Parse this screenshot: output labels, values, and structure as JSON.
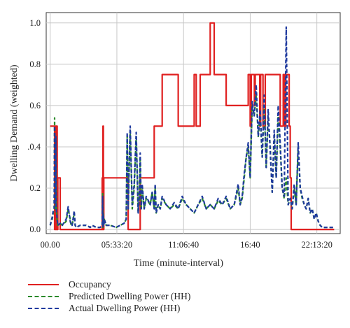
{
  "chart_data": {
    "type": "line",
    "xlabel": "Time (minute-interval)",
    "ylabel": "Dwelling Demand (weighted)",
    "x_ticks": [
      "00.00",
      "05:33:20",
      "11:06:40",
      "16:40",
      "22:13:20"
    ],
    "x_tick_minutes": [
      0,
      333.33,
      666.67,
      1000,
      1333.33
    ],
    "xlim": [
      -20,
      1450
    ],
    "y_ticks": [
      "0.0",
      "0.2",
      ".0.4",
      "0.6",
      "0.8",
      "1.0"
    ],
    "y_tick_values": [
      0,
      0.2,
      0.4,
      0.6,
      0.8,
      1.0
    ],
    "ylim": [
      -0.02,
      1.05
    ],
    "grid": true,
    "legend_position": "bottom",
    "series": [
      {
        "name": "Occupancy",
        "style": "solid",
        "color": "#e02020",
        "x": [
          0,
          22,
          22,
          26,
          26,
          30,
          30,
          32,
          32,
          35,
          35,
          38,
          38,
          50,
          50,
          260,
          260,
          262,
          262,
          264,
          264,
          266,
          266,
          268,
          268,
          390,
          390,
          450,
          450,
          520,
          520,
          560,
          560,
          640,
          640,
          720,
          720,
          730,
          730,
          750,
          750,
          800,
          800,
          820,
          820,
          880,
          880,
          990,
          990,
          1000,
          1000,
          1005,
          1005,
          1015,
          1015,
          1021,
          1021,
          1025,
          1025,
          1030,
          1030,
          1040,
          1040,
          1044,
          1044,
          1048,
          1048,
          1052,
          1052,
          1058,
          1058,
          1064,
          1064,
          1075,
          1075,
          1085,
          1085,
          1130,
          1130,
          1150,
          1150,
          1165,
          1165,
          1172,
          1172,
          1178,
          1178,
          1190,
          1190,
          1195,
          1195,
          1200,
          1200,
          1205,
          1205,
          1260,
          1260,
          1275,
          1275,
          1290,
          1290,
          1340,
          1340,
          1350,
          1350,
          1370,
          1370,
          1380,
          1380,
          1420
        ],
        "y": [
          0.5,
          0.5,
          0.0,
          0.0,
          0.5,
          0.5,
          0.0,
          0.0,
          0.5,
          0.5,
          0.0,
          0.0,
          0.25,
          0.25,
          0.0,
          0.0,
          0.25,
          0.25,
          0.0,
          0.0,
          0.5,
          0.5,
          0.0,
          0.0,
          0.25,
          0.25,
          0.0,
          0.0,
          0.25,
          0.25,
          0.5,
          0.5,
          0.75,
          0.75,
          0.5,
          0.5,
          0.75,
          0.75,
          0.5,
          0.5,
          0.75,
          0.75,
          1.0,
          1.0,
          0.75,
          0.75,
          0.6,
          0.6,
          0.75,
          0.75,
          0.5,
          0.5,
          0.75,
          0.75,
          0.75,
          0.75,
          0.6,
          0.6,
          0.75,
          0.75,
          0.75,
          0.75,
          0.75,
          0.75,
          0.75,
          0.75,
          0.5,
          0.5,
          0.75,
          0.75,
          0.75,
          0.75,
          0.5,
          0.5,
          0.75,
          0.75,
          0.75,
          0.75,
          0.75,
          0.75,
          0.5,
          0.5,
          0.75,
          0.75,
          0.5,
          0.5,
          0.75,
          0.75,
          0.75,
          0.75,
          0.5,
          0.5,
          0.25,
          0.25,
          0.0,
          0.0,
          0.0,
          0.0,
          0.0,
          0.0,
          0.0,
          0.0,
          0.0,
          0.0,
          0.0,
          0.0,
          0.0,
          0.0,
          0.0,
          0.0
        ]
      },
      {
        "name": "Predicted Dwelling Power (HH)",
        "style": "dashed",
        "color": "#2a8a2a",
        "x": [
          0,
          10,
          15,
          20,
          22,
          24,
          26,
          28,
          30,
          35,
          38,
          50,
          60,
          80,
          90,
          100,
          105,
          110,
          120,
          125,
          130,
          150,
          180,
          200,
          210,
          230,
          250,
          260,
          262,
          264,
          266,
          268,
          270,
          280,
          300,
          330,
          350,
          370,
          380,
          385,
          390,
          395,
          400,
          410,
          420,
          430,
          440,
          445,
          450,
          455,
          460,
          470,
          480,
          500,
          510,
          520,
          525,
          530,
          540,
          550,
          560,
          580,
          600,
          620,
          640,
          660,
          680,
          700,
          720,
          740,
          760,
          780,
          800,
          820,
          840,
          860,
          880,
          900,
          920,
          940,
          950,
          960,
          970,
          980,
          990,
          1000,
          1010,
          1020,
          1030,
          1040,
          1050,
          1060,
          1070,
          1080,
          1090,
          1100,
          1110,
          1120,
          1130,
          1140,
          1150,
          1160,
          1170,
          1180,
          1190,
          1200,
          1210,
          1220,
          1230,
          1240,
          1250,
          1260,
          1270,
          1280,
          1290,
          1300,
          1310,
          1320,
          1330,
          1340,
          1350,
          1360,
          1380,
          1420
        ],
        "y": [
          0.02,
          0.05,
          0.08,
          0.1,
          0.54,
          0.3,
          0.1,
          0.45,
          0.12,
          0.04,
          0.02,
          0.03,
          0.02,
          0.04,
          0.1,
          0.05,
          0.02,
          0.02,
          0.08,
          0.02,
          0.01,
          0.02,
          0.02,
          0.01,
          0.02,
          0.01,
          0.01,
          0.02,
          0.18,
          0.01,
          0.08,
          0.02,
          0.05,
          0.02,
          0.02,
          0.01,
          0.02,
          0.03,
          0.05,
          0.45,
          0.1,
          0.3,
          0.48,
          0.1,
          0.2,
          0.45,
          0.08,
          0.15,
          0.35,
          0.1,
          0.2,
          0.1,
          0.15,
          0.12,
          0.18,
          0.1,
          0.2,
          0.08,
          0.12,
          0.1,
          0.15,
          0.12,
          0.1,
          0.12,
          0.1,
          0.15,
          0.12,
          0.1,
          0.08,
          0.12,
          0.15,
          0.1,
          0.12,
          0.1,
          0.14,
          0.12,
          0.15,
          0.1,
          0.12,
          0.2,
          0.12,
          0.15,
          0.25,
          0.35,
          0.4,
          0.25,
          0.6,
          0.55,
          0.65,
          0.45,
          0.55,
          0.35,
          0.6,
          0.3,
          0.55,
          0.4,
          0.18,
          0.45,
          0.25,
          0.55,
          0.4,
          0.2,
          0.15,
          0.25,
          0.12,
          0.15,
          0.1,
          0.2,
          0.12,
          0.4,
          0.2,
          0.15,
          0.12,
          0.1,
          0.15,
          0.08,
          0.1,
          0.05,
          0.08,
          0.04,
          0.02,
          0.01,
          0.01,
          0.01
        ]
      },
      {
        "name": "Actual Dwelling Power (HH)",
        "style": "dashed",
        "color": "#1f3a9e",
        "x": [
          0,
          10,
          15,
          20,
          22,
          24,
          26,
          28,
          30,
          35,
          38,
          50,
          60,
          80,
          90,
          100,
          105,
          110,
          120,
          125,
          130,
          150,
          180,
          200,
          210,
          230,
          250,
          260,
          262,
          264,
          266,
          268,
          270,
          280,
          300,
          330,
          350,
          370,
          380,
          385,
          390,
          395,
          400,
          410,
          420,
          430,
          440,
          445,
          450,
          455,
          460,
          470,
          480,
          500,
          510,
          520,
          525,
          530,
          540,
          550,
          560,
          580,
          600,
          620,
          640,
          660,
          680,
          700,
          720,
          740,
          760,
          780,
          800,
          820,
          840,
          860,
          880,
          900,
          920,
          940,
          950,
          960,
          970,
          980,
          990,
          1000,
          1010,
          1020,
          1030,
          1040,
          1050,
          1060,
          1070,
          1080,
          1090,
          1100,
          1110,
          1120,
          1130,
          1140,
          1150,
          1160,
          1170,
          1180,
          1190,
          1200,
          1210,
          1220,
          1230,
          1240,
          1250,
          1260,
          1270,
          1280,
          1290,
          1300,
          1310,
          1320,
          1330,
          1340,
          1350,
          1360,
          1380,
          1420
        ],
        "y": [
          0.02,
          0.06,
          0.09,
          0.1,
          0.5,
          0.32,
          0.12,
          0.45,
          0.1,
          0.05,
          0.02,
          0.03,
          0.02,
          0.05,
          0.11,
          0.04,
          0.02,
          0.02,
          0.09,
          0.02,
          0.01,
          0.02,
          0.02,
          0.01,
          0.02,
          0.01,
          0.01,
          0.02,
          0.16,
          0.01,
          0.07,
          0.02,
          0.05,
          0.02,
          0.02,
          0.01,
          0.02,
          0.03,
          0.05,
          0.47,
          0.1,
          0.32,
          0.5,
          0.12,
          0.22,
          0.47,
          0.08,
          0.15,
          0.37,
          0.1,
          0.22,
          0.1,
          0.16,
          0.12,
          0.18,
          0.1,
          0.22,
          0.08,
          0.12,
          0.1,
          0.16,
          0.12,
          0.1,
          0.13,
          0.1,
          0.16,
          0.12,
          0.1,
          0.08,
          0.12,
          0.16,
          0.1,
          0.12,
          0.1,
          0.15,
          0.12,
          0.16,
          0.1,
          0.12,
          0.22,
          0.12,
          0.16,
          0.27,
          0.35,
          0.42,
          0.25,
          0.62,
          0.55,
          0.7,
          0.45,
          0.58,
          0.35,
          0.65,
          0.3,
          0.58,
          0.38,
          0.18,
          0.48,
          0.25,
          0.6,
          0.42,
          0.2,
          0.16,
          0.98,
          0.12,
          0.15,
          0.1,
          0.22,
          0.12,
          0.42,
          0.2,
          0.16,
          0.12,
          0.1,
          0.15,
          0.08,
          0.1,
          0.05,
          0.08,
          0.04,
          0.02,
          0.01,
          0.01,
          0.01
        ]
      }
    ]
  },
  "legend": {
    "items": [
      {
        "label": "Occupancy",
        "color": "#e02020",
        "dashed": false
      },
      {
        "label": "Predicted Dwelling Power (HH)",
        "color": "#2a8a2a",
        "dashed": true
      },
      {
        "label": "Actual Dwelling Power (HH)",
        "color": "#1f3a9e",
        "dashed": true
      }
    ]
  }
}
